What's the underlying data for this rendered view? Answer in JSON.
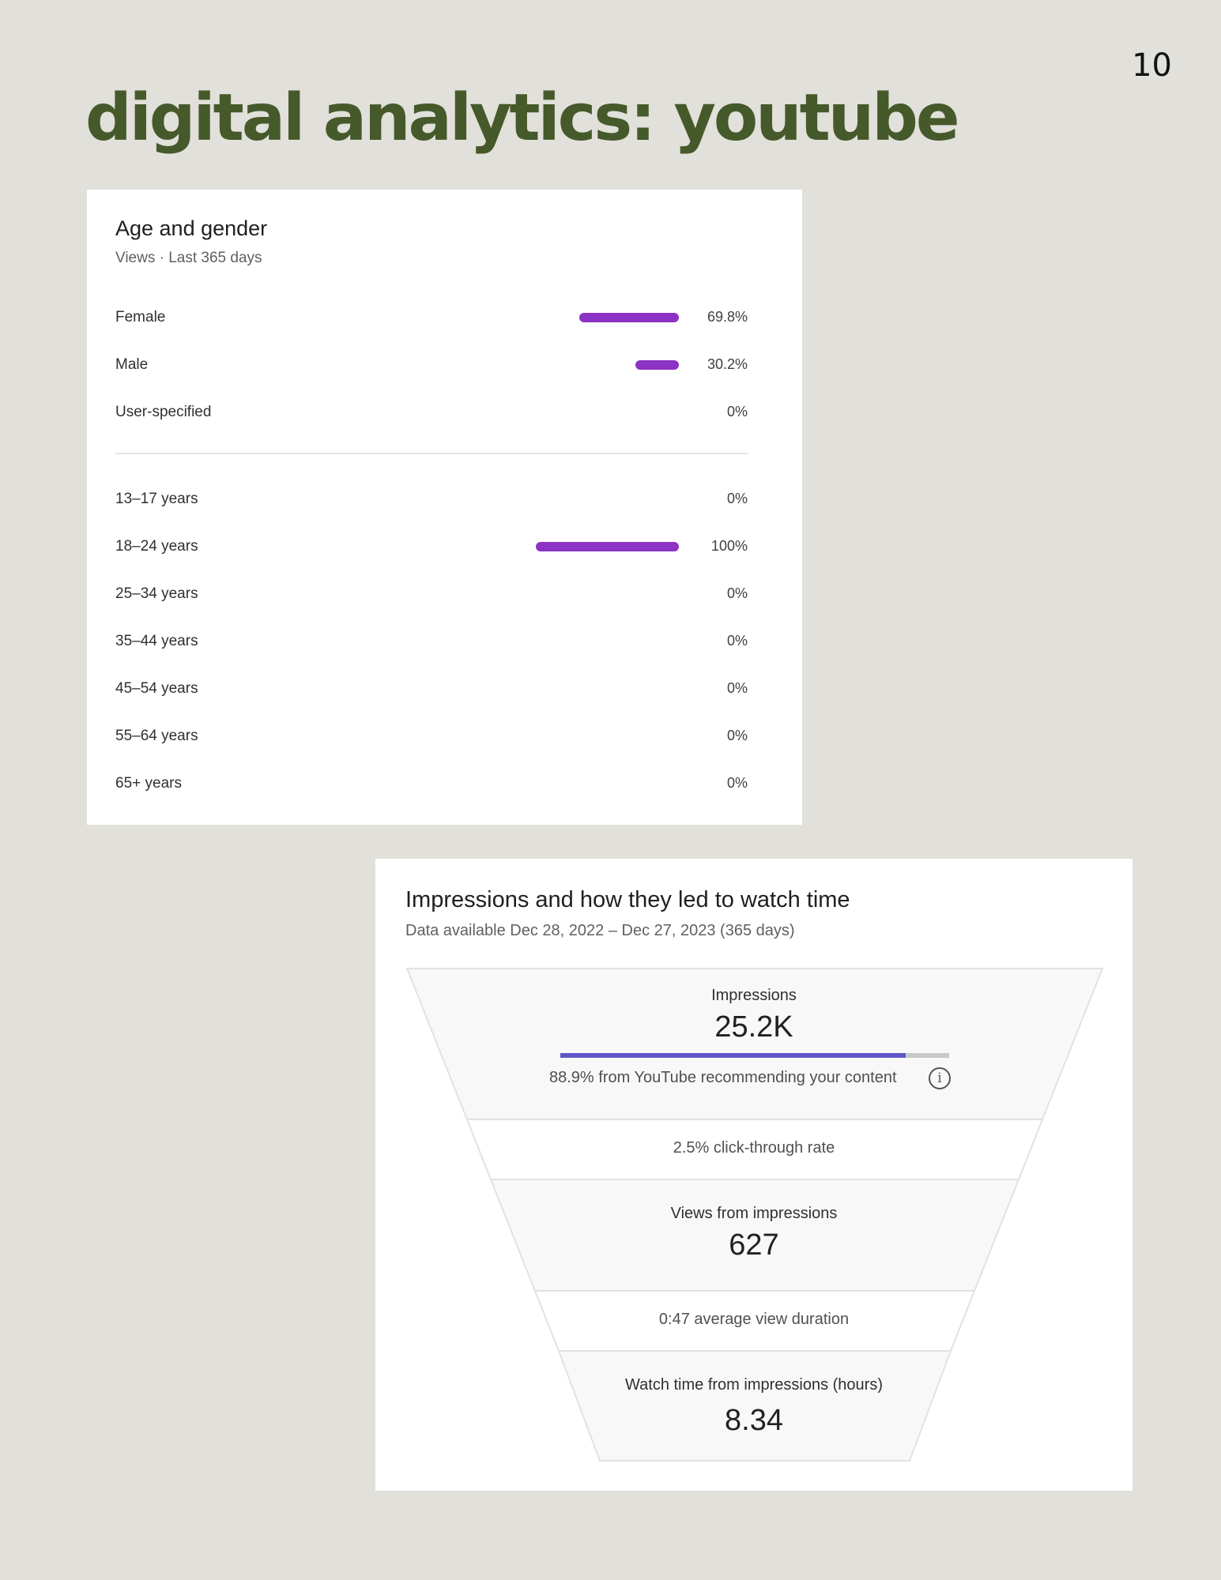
{
  "page": {
    "number": "10",
    "title": "digital analytics: youtube"
  },
  "age_gender": {
    "title": "Age and gender",
    "subtitle": "Views · Last 365 days",
    "bar_color": "#8c32c4",
    "gender": [
      {
        "label": "Female",
        "value": "69.8%",
        "fraction": 0.698
      },
      {
        "label": "Male",
        "value": "30.2%",
        "fraction": 0.302
      },
      {
        "label": "User-specified",
        "value": "0%",
        "fraction": 0
      }
    ],
    "age": [
      {
        "label": "13–17 years",
        "value": "0%",
        "fraction": 0
      },
      {
        "label": "18–24 years",
        "value": "100%",
        "fraction": 1.0
      },
      {
        "label": "25–34 years",
        "value": "0%",
        "fraction": 0
      },
      {
        "label": "35–44 years",
        "value": "0%",
        "fraction": 0
      },
      {
        "label": "45–54 years",
        "value": "0%",
        "fraction": 0
      },
      {
        "label": "55–64 years",
        "value": "0%",
        "fraction": 0
      },
      {
        "label": "65+ years",
        "value": "0%",
        "fraction": 0
      }
    ]
  },
  "impressions": {
    "title": "Impressions and how they led to watch time",
    "subtitle": "Data available Dec 28, 2022 – Dec 27, 2023 (365 days)",
    "impressions_label": "Impressions",
    "impressions_value": "25.2K",
    "recommend_text": "88.9% from YouTube recommending your content",
    "recommend_fraction": 0.889,
    "recommend_color": "#5e56c8",
    "ctr_text": "2.5% click-through rate",
    "views_label": "Views from impressions",
    "views_value": "627",
    "avg_duration_text": "0:47 average view duration",
    "watch_label": "Watch time from impressions (hours)",
    "watch_value": "8.34",
    "info_icon": "info-icon"
  }
}
